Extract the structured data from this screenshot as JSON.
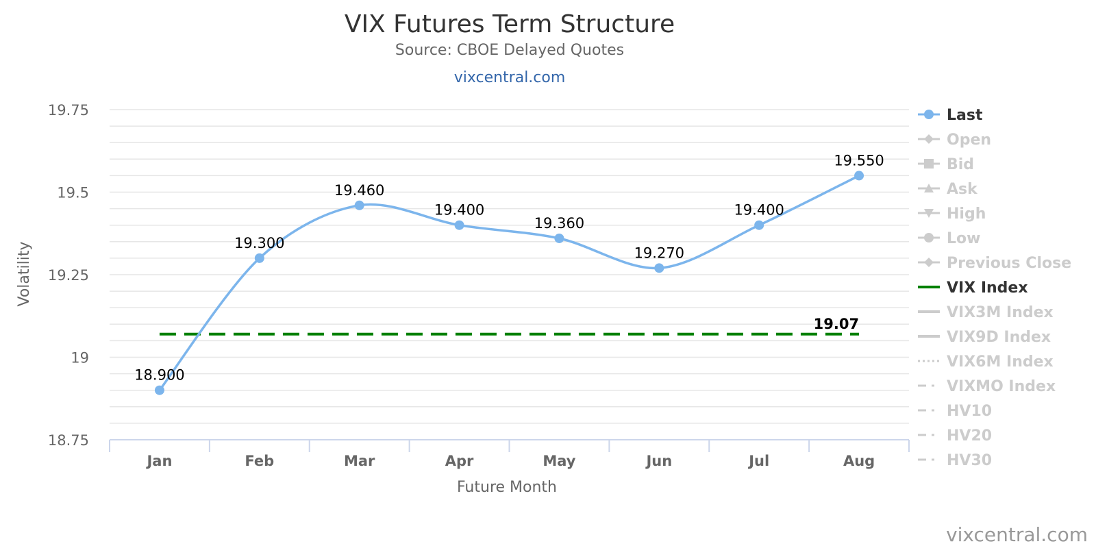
{
  "title": "VIX Futures Term Structure",
  "subtitle": "Source: CBOE Delayed Quotes",
  "link_text": "vixcentral.com",
  "credit": "vixcentral.com",
  "colors": {
    "last": "#7cb5ec",
    "vix_index": "#008000",
    "link": "#3366aa",
    "legend_hidden": "#cccccc",
    "legend_active": "#333333",
    "grid": "#e6e6e6",
    "axis_text": "#666666"
  },
  "chart_data": {
    "type": "line",
    "categories": [
      "Jan",
      "Feb",
      "Mar",
      "Apr",
      "May",
      "Jun",
      "Jul",
      "Aug"
    ],
    "xlabel": "Future Month",
    "ylabel": "Volatility",
    "ylim": [
      18.75,
      19.75
    ],
    "yticks": [
      18.75,
      19,
      19.25,
      19.5,
      19.75
    ],
    "ytick_labels": [
      "18.75",
      "19",
      "19.25",
      "19.5",
      "19.75"
    ],
    "grid": true,
    "legend_position": "right",
    "series": [
      {
        "name": "Last",
        "values": [
          18.9,
          19.3,
          19.46,
          19.4,
          19.36,
          19.27,
          19.4,
          19.55
        ],
        "labels": [
          "18.900",
          "19.300",
          "19.460",
          "19.400",
          "19.360",
          "19.270",
          "19.400",
          "19.550"
        ]
      },
      {
        "name": "VIX Index",
        "value": 19.07,
        "label": "19.07",
        "style": "dashed"
      }
    ]
  },
  "legend": [
    {
      "name": "Last",
      "symbol": "circle",
      "active": true
    },
    {
      "name": "Open",
      "symbol": "diamond",
      "active": false
    },
    {
      "name": "Bid",
      "symbol": "square",
      "active": false
    },
    {
      "name": "Ask",
      "symbol": "triangle",
      "active": false
    },
    {
      "name": "High",
      "symbol": "triangle-down",
      "active": false
    },
    {
      "name": "Low",
      "symbol": "circle",
      "active": false
    },
    {
      "name": "Previous Close",
      "symbol": "diamond",
      "active": false
    },
    {
      "name": "VIX Index",
      "symbol": "line",
      "active": true
    },
    {
      "name": "VIX3M Index",
      "symbol": "line",
      "active": false
    },
    {
      "name": "VIX9D Index",
      "symbol": "line",
      "active": false
    },
    {
      "name": "VIX6M Index",
      "symbol": "dotted",
      "active": false
    },
    {
      "name": "VIXMO Index",
      "symbol": "dashdot",
      "active": false
    },
    {
      "name": "HV10",
      "symbol": "dashdot",
      "active": false
    },
    {
      "name": "HV20",
      "symbol": "dashdot",
      "active": false
    },
    {
      "name": "HV30",
      "symbol": "dashdot",
      "active": false
    }
  ]
}
